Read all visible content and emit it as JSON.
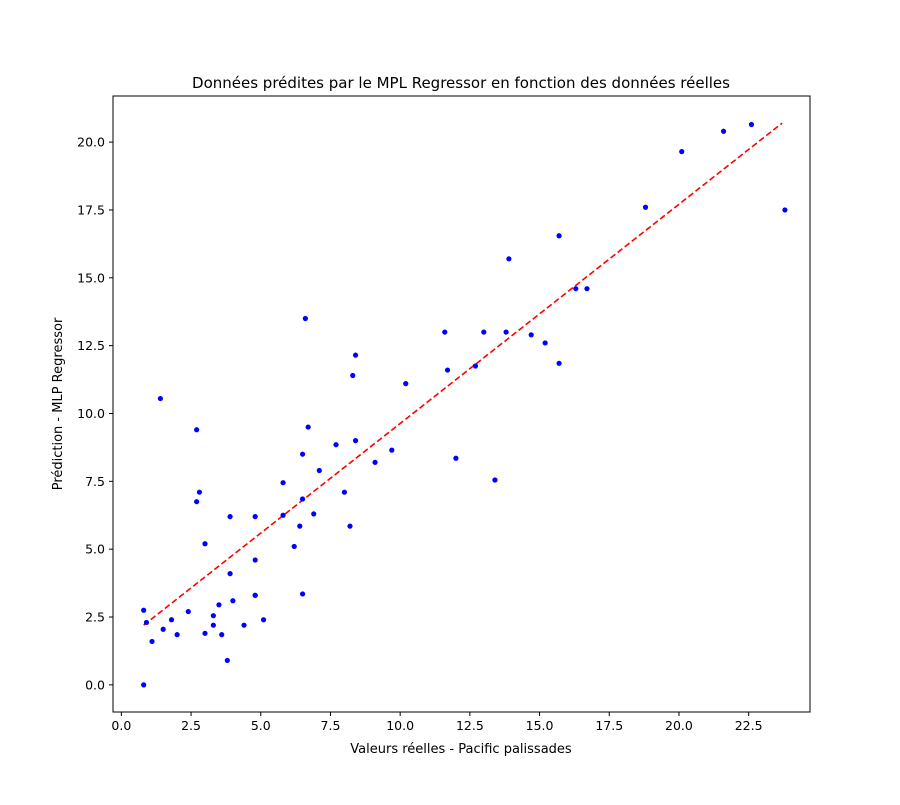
{
  "chart_data": {
    "type": "scatter",
    "title": "Données prédites par le MPL Regressor en fonction des données réelles",
    "xlabel": "Valeurs réelles - Pacific palissades",
    "ylabel": "Prédiction - MLP Regressor",
    "xlim": [
      -0.3,
      24.7
    ],
    "ylim": [
      -1.0,
      21.7
    ],
    "xticks": [
      0.0,
      2.5,
      5.0,
      7.5,
      10.0,
      12.5,
      15.0,
      17.5,
      20.0,
      22.5
    ],
    "xtick_labels": [
      "0.0",
      "2.5",
      "5.0",
      "7.5",
      "10.0",
      "12.5",
      "15.0",
      "17.5",
      "20.0",
      "22.5"
    ],
    "yticks": [
      0.0,
      2.5,
      5.0,
      7.5,
      10.0,
      12.5,
      15.0,
      17.5,
      20.0
    ],
    "ytick_labels": [
      "0.0",
      "2.5",
      "5.0",
      "7.5",
      "10.0",
      "12.5",
      "15.0",
      "17.5",
      "20.0"
    ],
    "grid": false,
    "point_color": "#0000ff",
    "line_color": "#ff0000",
    "points": [
      [
        0.8,
        0.0
      ],
      [
        0.8,
        2.75
      ],
      [
        0.9,
        2.3
      ],
      [
        1.1,
        1.6
      ],
      [
        1.4,
        10.55
      ],
      [
        1.5,
        2.05
      ],
      [
        1.8,
        2.4
      ],
      [
        2.0,
        1.85
      ],
      [
        2.4,
        2.7
      ],
      [
        2.7,
        9.4
      ],
      [
        2.7,
        6.75
      ],
      [
        2.8,
        7.1
      ],
      [
        3.0,
        5.2
      ],
      [
        3.0,
        1.9
      ],
      [
        3.3,
        2.55
      ],
      [
        3.3,
        2.2
      ],
      [
        3.5,
        2.95
      ],
      [
        3.6,
        1.85
      ],
      [
        3.8,
        0.9
      ],
      [
        3.9,
        6.2
      ],
      [
        3.9,
        4.1
      ],
      [
        4.0,
        3.1
      ],
      [
        4.4,
        2.2
      ],
      [
        4.8,
        6.2
      ],
      [
        4.8,
        4.6
      ],
      [
        4.8,
        3.3
      ],
      [
        4.8,
        3.3
      ],
      [
        5.1,
        2.4
      ],
      [
        5.8,
        7.45
      ],
      [
        5.8,
        6.25
      ],
      [
        6.2,
        5.1
      ],
      [
        6.4,
        5.85
      ],
      [
        6.5,
        8.5
      ],
      [
        6.5,
        6.85
      ],
      [
        6.5,
        3.35
      ],
      [
        6.6,
        13.5
      ],
      [
        6.7,
        9.5
      ],
      [
        6.9,
        6.3
      ],
      [
        7.1,
        7.9
      ],
      [
        7.7,
        8.85
      ],
      [
        8.0,
        7.1
      ],
      [
        8.2,
        5.85
      ],
      [
        8.3,
        11.4
      ],
      [
        8.4,
        12.15
      ],
      [
        8.4,
        9.0
      ],
      [
        9.1,
        8.2
      ],
      [
        9.7,
        8.65
      ],
      [
        10.2,
        11.1
      ],
      [
        11.6,
        13.0
      ],
      [
        11.7,
        11.6
      ],
      [
        12.0,
        8.35
      ],
      [
        12.7,
        11.75
      ],
      [
        13.0,
        13.0
      ],
      [
        13.4,
        7.55
      ],
      [
        13.8,
        13.0
      ],
      [
        13.9,
        15.7
      ],
      [
        14.7,
        12.9
      ],
      [
        15.2,
        12.6
      ],
      [
        15.7,
        16.55
      ],
      [
        15.7,
        11.85
      ],
      [
        16.3,
        14.6
      ],
      [
        16.7,
        14.6
      ],
      [
        18.8,
        17.6
      ],
      [
        20.1,
        19.65
      ],
      [
        21.6,
        20.4
      ],
      [
        22.6,
        20.65
      ],
      [
        23.8,
        17.5
      ]
    ],
    "trend_line": {
      "x": [
        0.8,
        23.7
      ],
      "y": [
        2.2,
        20.7
      ],
      "style": "dashed"
    }
  }
}
